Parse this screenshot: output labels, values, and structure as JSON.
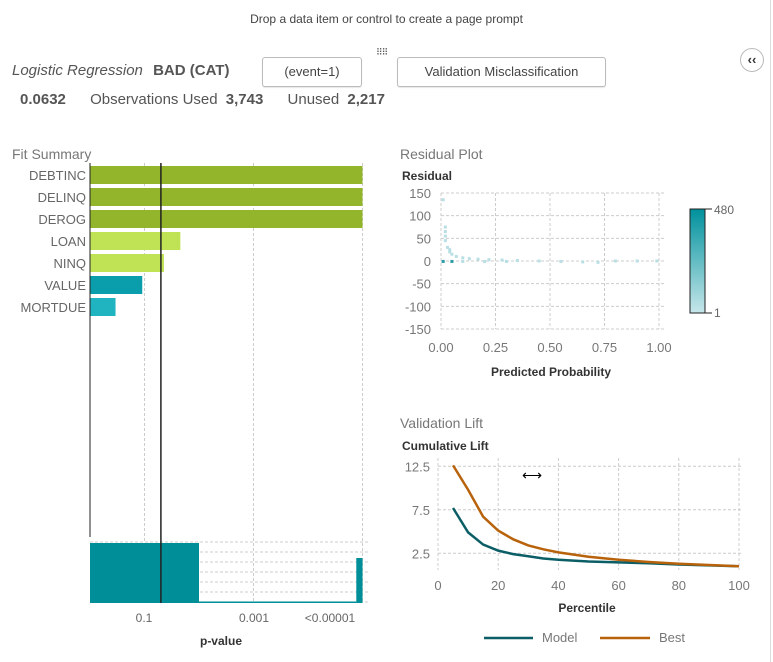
{
  "prompt": "Drop a data item or control to create a page prompt",
  "header": {
    "model_type": "Logistic Regression",
    "target": "BAD (CAT)",
    "event_button": "(event=1)",
    "stat_button": "Validation Misclassification",
    "stat_value": "0.0632",
    "obs_used_label": "Observations Used",
    "obs_used": "3,743",
    "unused_label": "Unused",
    "unused": "2,217",
    "collapse_icon": "double-chevron-left-icon"
  },
  "fit_summary": {
    "title": "Fit Summary",
    "xlabel": "p-value",
    "ticks": [
      "0.1",
      "0.001",
      "<0.00001"
    ]
  },
  "residual": {
    "title": "Residual Plot",
    "ylabel": "Residual",
    "xlabel": "Predicted Probability",
    "yticks": [
      "150",
      "100",
      "50",
      "0",
      "-50",
      "-100",
      "-150"
    ],
    "xticks": [
      "0.00",
      "0.25",
      "0.50",
      "0.75",
      "1.00"
    ],
    "legend_max": "480",
    "legend_min": "1"
  },
  "lift": {
    "title": "Validation Lift",
    "ylabel": "Cumulative Lift",
    "xlabel": "Percentile",
    "yticks": [
      "12.5",
      "7.5",
      "2.5"
    ],
    "xticks": [
      "0",
      "20",
      "40",
      "60",
      "80",
      "100"
    ],
    "legend": [
      "Model",
      "Best"
    ]
  },
  "chart_data": [
    {
      "type": "bar",
      "title": "Fit Summary",
      "xlabel": "p-value",
      "scale": "log",
      "categories": [
        "DEBTINC",
        "DELINQ",
        "DEROG",
        "LOAN",
        "NINQ",
        "VALUE",
        "MORTDUE"
      ],
      "p_values": [
        1e-05,
        1e-05,
        1e-05,
        0.022,
        0.044,
        0.11,
        0.34
      ],
      "colors": [
        "#93b52b",
        "#93b52b",
        "#93b52b",
        "#c0e255",
        "#c0e255",
        "#0a9ead",
        "#20b3c0"
      ],
      "reference_p": 0.05,
      "histogram": {
        "bins": [
          [
            1,
            0.01,
            4
          ],
          [
            0.01,
            1.3e-05,
            0.1
          ],
          [
            1.3e-05,
            1e-05,
            3
          ]
        ]
      }
    },
    {
      "type": "scatter",
      "title": "Residual Plot",
      "xlabel": "Predicted Probability",
      "ylabel": "Residual",
      "xlim": [
        0,
        1
      ],
      "ylim": [
        -150,
        150
      ],
      "color_range": [
        1,
        480
      ],
      "points": [
        [
          0.01,
          135
        ],
        [
          0.02,
          75
        ],
        [
          0.02,
          65
        ],
        [
          0.02,
          55
        ],
        [
          0.02,
          45
        ],
        [
          0.03,
          30
        ],
        [
          0.04,
          25
        ],
        [
          0.04,
          20
        ],
        [
          0.05,
          15
        ],
        [
          0.07,
          10
        ],
        [
          0.1,
          7
        ],
        [
          0.13,
          5
        ],
        [
          0.17,
          4
        ],
        [
          0.22,
          3
        ],
        [
          0.28,
          2
        ],
        [
          0.35,
          1
        ],
        [
          0.45,
          0
        ],
        [
          0.55,
          -1
        ],
        [
          0.65,
          -2
        ],
        [
          0.72,
          -3
        ],
        [
          0.8,
          0
        ],
        [
          0.9,
          0
        ],
        [
          0.99,
          0
        ],
        [
          0.01,
          -1
        ],
        [
          0.05,
          -1
        ],
        [
          0.1,
          -1
        ],
        [
          0.2,
          -1
        ],
        [
          0.3,
          -1
        ]
      ]
    },
    {
      "type": "line",
      "title": "Validation Lift",
      "xlabel": "Percentile",
      "ylabel": "Cumulative Lift",
      "xlim": [
        0,
        100
      ],
      "x": [
        5,
        10,
        15,
        20,
        25,
        30,
        35,
        40,
        50,
        60,
        70,
        80,
        90,
        100
      ],
      "series": [
        {
          "name": "Model",
          "color": "#0b5e66",
          "values": [
            7.7,
            4.9,
            3.5,
            2.8,
            2.4,
            2.15,
            1.9,
            1.75,
            1.55,
            1.45,
            1.35,
            1.2,
            1.1,
            1.0
          ]
        },
        {
          "name": "Best",
          "color": "#b8620b",
          "values": [
            12.6,
            9.8,
            6.7,
            5.1,
            4.1,
            3.4,
            2.95,
            2.6,
            2.1,
            1.75,
            1.5,
            1.3,
            1.15,
            1.0
          ]
        }
      ]
    }
  ]
}
